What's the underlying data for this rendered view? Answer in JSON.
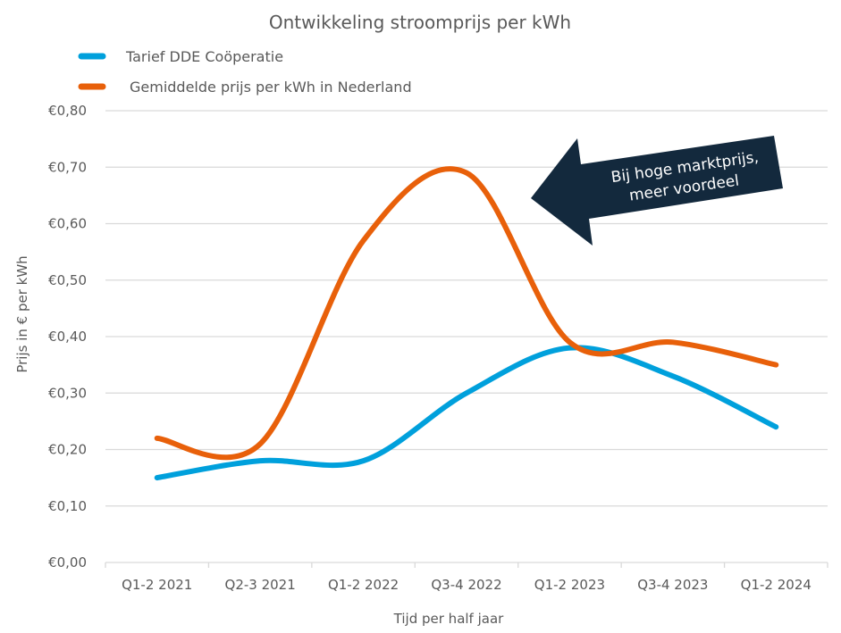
{
  "chart_data": {
    "type": "line",
    "title": "Ontwikkeling stroomprijs per kWh",
    "xlabel": "Tijd per half jaar",
    "ylabel": "Prijs in € per kWh",
    "categories": [
      "Q1-2 2021",
      "Q2-3 2021",
      "Q1-2 2022",
      "Q3-4 2022",
      "Q1-2 2023",
      "Q3-4 2023",
      "Q1-2 2024"
    ],
    "ylim": [
      0,
      0.8
    ],
    "yticks": [
      0,
      0.1,
      0.2,
      0.3,
      0.4,
      0.5,
      0.6,
      0.7,
      0.8
    ],
    "ytick_labels": [
      "€0,00",
      "€0,10",
      "€0,20",
      "€0,30",
      "€0,40",
      "€0,50",
      "€0,60",
      "€0,70",
      "€0,80"
    ],
    "grid": true,
    "smooth": true,
    "legend_position": "top-left",
    "series": [
      {
        "name": "Tarief DDE Coöperatie",
        "color": "#00A0DC",
        "values": [
          0.15,
          0.18,
          0.18,
          0.3,
          0.38,
          0.33,
          0.24
        ]
      },
      {
        "name": "Gemiddelde prijs per kWh in Nederland",
        "color": "#E8600A",
        "values": [
          0.22,
          0.21,
          0.57,
          0.69,
          0.39,
          0.39,
          0.35
        ]
      }
    ],
    "annotation": {
      "text_lines": [
        "Bij hoge marktprijs,",
        "meer voordeel"
      ],
      "shape": "arrow-left",
      "color": "#13293D"
    }
  }
}
